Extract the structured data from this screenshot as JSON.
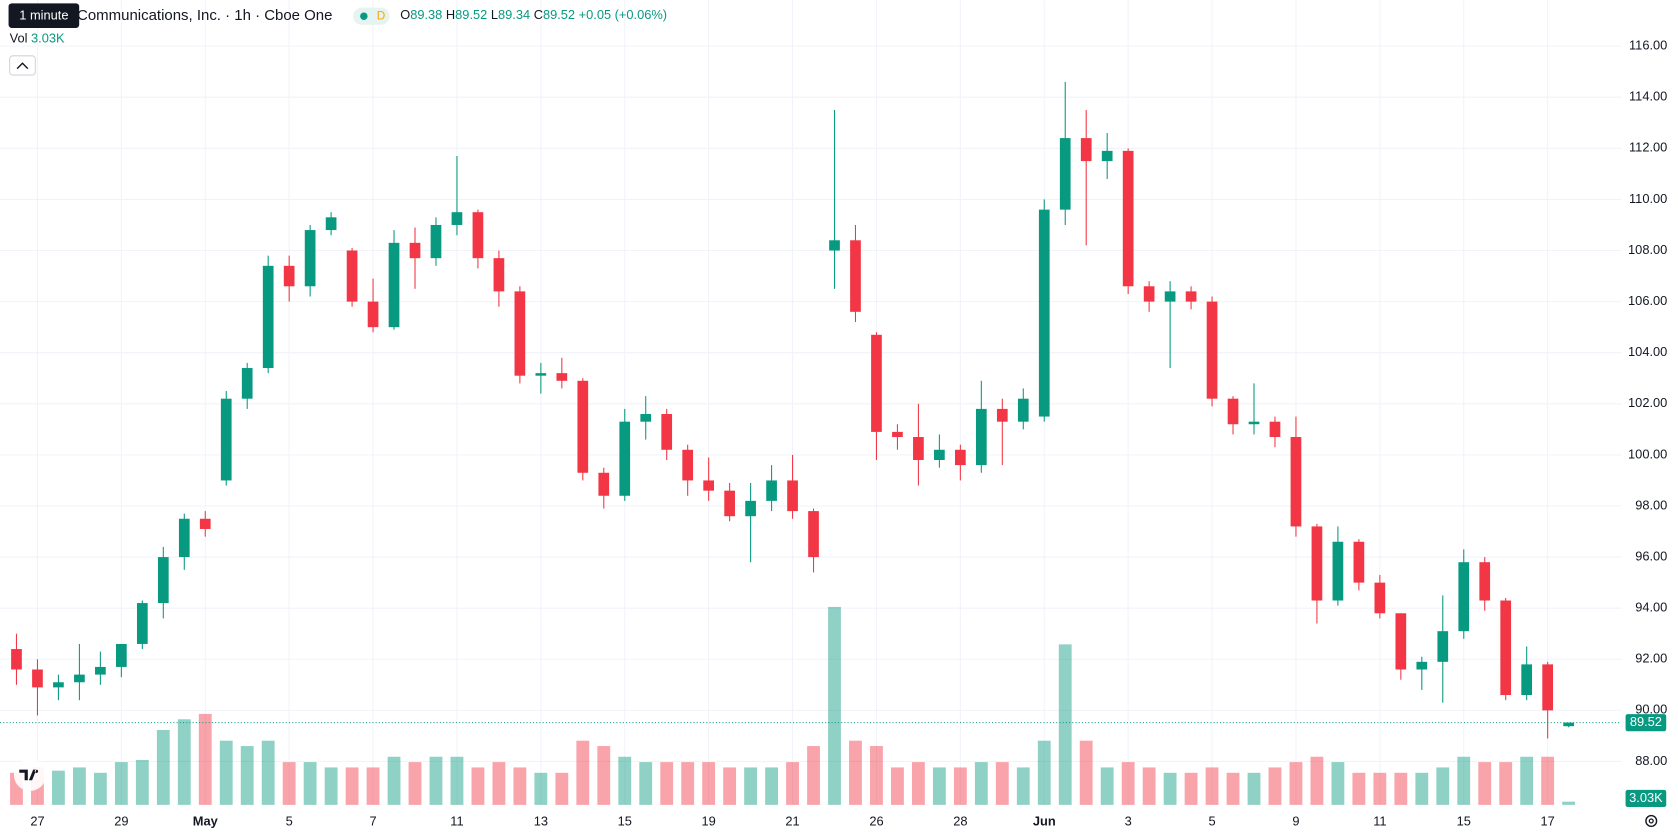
{
  "header": {
    "tooltip": "1 minute",
    "title": "Communications, Inc. · 1h · Cboe One",
    "badge": "D",
    "ohlc_labels": [
      "O",
      "H",
      "L",
      "C"
    ],
    "change": "+0.05 (+0.06%)",
    "volume_label": "Vol",
    "volume": "3.03K"
  },
  "chart_data": {
    "type": "candlestick",
    "categories": [
      null,
      "27",
      null,
      null,
      null,
      "29",
      null,
      null,
      null,
      "May",
      null,
      null,
      null,
      "5",
      null,
      null,
      null,
      "7",
      null,
      null,
      null,
      "11",
      null,
      null,
      null,
      "13",
      null,
      null,
      null,
      "15",
      null,
      null,
      null,
      "19",
      null,
      null,
      null,
      "21",
      null,
      null,
      null,
      "26",
      null,
      null,
      null,
      "28",
      null,
      null,
      null,
      "Jun",
      null,
      null,
      null,
      "3",
      null,
      null,
      null,
      "5",
      null,
      null,
      null,
      "9",
      null,
      null,
      null,
      "11",
      null,
      null,
      null,
      "15",
      null,
      null,
      null,
      "17",
      null
    ],
    "open": [
      92.4,
      91.6,
      90.9,
      91.1,
      91.4,
      91.7,
      92.6,
      94.2,
      96.0,
      97.5,
      99.0,
      102.2,
      103.4,
      107.4,
      106.6,
      108.8,
      108.0,
      106.0,
      105.0,
      108.3,
      107.7,
      109.0,
      109.5,
      107.7,
      106.4,
      103.1,
      103.2,
      102.9,
      99.3,
      98.4,
      101.3,
      101.6,
      100.2,
      99.0,
      98.6,
      97.6,
      98.2,
      99.0,
      97.8,
      108.0,
      108.4,
      104.7,
      100.9,
      100.7,
      99.8,
      100.2,
      99.6,
      101.8,
      101.3,
      101.5,
      109.6,
      112.4,
      111.5,
      111.9,
      106.6,
      106.0,
      106.4,
      106.0,
      102.2,
      101.2,
      101.3,
      100.7,
      97.2,
      94.3,
      96.6,
      95.0,
      93.8,
      91.6,
      91.9,
      93.1,
      95.8,
      94.3,
      90.6,
      91.8,
      89.38
    ],
    "high": [
      93.0,
      92.0,
      91.4,
      92.6,
      92.3,
      92.6,
      94.3,
      96.4,
      97.7,
      97.8,
      102.5,
      103.6,
      107.8,
      107.8,
      109.0,
      109.5,
      108.1,
      106.9,
      108.8,
      108.9,
      109.3,
      111.7,
      109.6,
      108.0,
      106.6,
      103.6,
      103.8,
      103.0,
      99.5,
      101.8,
      102.3,
      101.8,
      100.4,
      99.9,
      98.9,
      98.9,
      99.6,
      100.0,
      97.9,
      113.5,
      109.0,
      104.8,
      101.2,
      102.0,
      100.8,
      100.4,
      102.9,
      102.2,
      102.6,
      110.0,
      114.6,
      113.5,
      112.6,
      112.0,
      106.8,
      106.8,
      106.6,
      106.2,
      102.3,
      102.8,
      101.5,
      101.5,
      97.3,
      97.2,
      96.7,
      95.3,
      93.8,
      92.1,
      94.5,
      96.3,
      96.0,
      94.4,
      92.5,
      91.9,
      89.52
    ],
    "low": [
      91.0,
      89.8,
      90.4,
      90.4,
      91.0,
      91.3,
      92.4,
      93.6,
      95.5,
      96.8,
      98.8,
      101.8,
      103.2,
      106.0,
      106.2,
      108.6,
      105.8,
      104.8,
      104.9,
      106.5,
      107.4,
      108.6,
      107.3,
      105.8,
      102.8,
      102.4,
      102.6,
      99.0,
      97.9,
      98.2,
      100.6,
      99.8,
      98.4,
      98.2,
      97.4,
      95.8,
      97.8,
      97.5,
      95.4,
      106.5,
      105.2,
      99.8,
      100.2,
      98.8,
      99.5,
      99.0,
      99.3,
      99.6,
      101.0,
      101.3,
      109.0,
      108.2,
      110.8,
      106.3,
      105.6,
      103.4,
      105.7,
      101.9,
      100.8,
      100.8,
      100.3,
      96.8,
      93.4,
      94.1,
      94.7,
      93.6,
      91.2,
      90.8,
      90.3,
      92.8,
      93.9,
      90.4,
      90.4,
      88.9,
      89.34
    ],
    "close": [
      91.6,
      90.9,
      91.1,
      91.4,
      91.7,
      92.6,
      94.2,
      96.0,
      97.5,
      97.1,
      102.2,
      103.4,
      107.4,
      106.6,
      108.8,
      109.3,
      106.0,
      105.0,
      108.3,
      107.7,
      109.0,
      109.5,
      107.7,
      106.4,
      103.1,
      103.2,
      102.9,
      99.3,
      98.4,
      101.3,
      101.6,
      100.2,
      99.0,
      98.6,
      97.6,
      98.2,
      99.0,
      97.8,
      96.0,
      108.4,
      105.6,
      100.9,
      100.7,
      99.8,
      100.2,
      99.6,
      101.8,
      101.3,
      102.2,
      109.6,
      112.4,
      111.5,
      111.9,
      106.6,
      106.0,
      106.4,
      106.0,
      102.2,
      101.2,
      101.3,
      100.7,
      97.2,
      94.3,
      96.6,
      95.0,
      93.8,
      91.6,
      91.9,
      93.1,
      95.8,
      94.3,
      90.6,
      91.8,
      90.0,
      89.52
    ],
    "volume": [
      30,
      35,
      32,
      35,
      30,
      40,
      42,
      70,
      80,
      85,
      60,
      55,
      60,
      40,
      40,
      35,
      35,
      35,
      45,
      40,
      45,
      45,
      35,
      40,
      35,
      30,
      30,
      60,
      55,
      45,
      40,
      40,
      40,
      40,
      35,
      35,
      35,
      40,
      55,
      185,
      60,
      55,
      35,
      40,
      35,
      35,
      40,
      40,
      35,
      60,
      150,
      60,
      35,
      40,
      35,
      30,
      30,
      35,
      30,
      30,
      35,
      40,
      45,
      40,
      30,
      30,
      30,
      30,
      35,
      45,
      40,
      40,
      45,
      45,
      3.03
    ],
    "up_color": "#089981",
    "down_color": "#f23645",
    "ylim": [
      86.3,
      117.8
    ],
    "volume_lim": [
      0,
      190
    ],
    "yticks": [
      {
        "value": 88,
        "label": "88.00"
      },
      {
        "value": 90,
        "label": "90.00"
      },
      {
        "value": 92,
        "label": "92.00"
      },
      {
        "value": 94,
        "label": "94.00"
      },
      {
        "value": 96,
        "label": "96.00"
      },
      {
        "value": 98,
        "label": "98.00"
      },
      {
        "value": 100,
        "label": "100.00"
      },
      {
        "value": 102,
        "label": "102.00"
      },
      {
        "value": 104,
        "label": "104.00"
      },
      {
        "value": 106,
        "label": "106.00"
      },
      {
        "value": 108,
        "label": "108.00"
      },
      {
        "value": 110,
        "label": "110.00"
      },
      {
        "value": 112,
        "label": "112.00"
      },
      {
        "value": 114,
        "label": "114.00"
      },
      {
        "value": 116,
        "label": "116.00"
      }
    ],
    "grid": true
  }
}
